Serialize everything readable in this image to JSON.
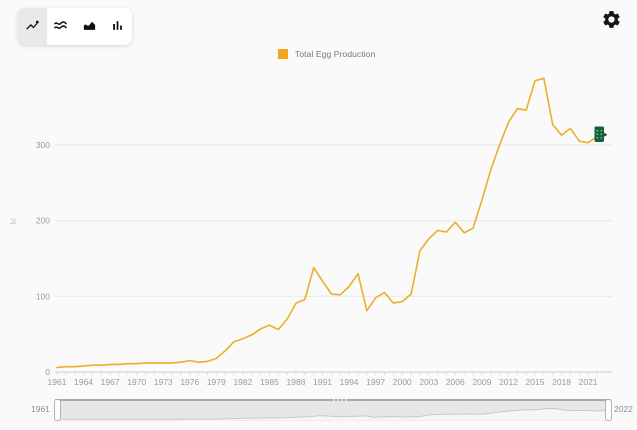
{
  "toolbar": {
    "buttons": [
      {
        "icon": "line-chart-icon",
        "selected": true
      },
      {
        "icon": "slope-chart-icon",
        "selected": false
      },
      {
        "icon": "stacked-area-chart-icon",
        "selected": false
      },
      {
        "icon": "bar-chart-icon",
        "selected": false
      }
    ]
  },
  "settings": {
    "icon": "gear-icon"
  },
  "legend": {
    "label": "Total Egg Production",
    "swatch_color": "#f0a71f"
  },
  "chart_data": {
    "type": "line",
    "title": "",
    "xlabel": "",
    "ylabel": "kt",
    "ylim": [
      0,
      400
    ],
    "yticks": [
      0,
      100,
      200,
      300
    ],
    "xticks": [
      1961,
      1964,
      1967,
      1970,
      1973,
      1976,
      1979,
      1982,
      1985,
      1988,
      1991,
      1994,
      1997,
      2000,
      2003,
      2006,
      2009,
      2012,
      2015,
      2018,
      2021
    ],
    "grid": true,
    "legend_position": "top",
    "x": [
      1961,
      1962,
      1963,
      1964,
      1965,
      1966,
      1967,
      1968,
      1969,
      1970,
      1971,
      1972,
      1973,
      1974,
      1975,
      1976,
      1977,
      1978,
      1979,
      1980,
      1981,
      1982,
      1983,
      1984,
      1985,
      1986,
      1987,
      1988,
      1989,
      1990,
      1991,
      1992,
      1993,
      1994,
      1995,
      1996,
      1997,
      1998,
      1999,
      2000,
      2001,
      2002,
      2003,
      2004,
      2005,
      2006,
      2007,
      2008,
      2009,
      2010,
      2011,
      2012,
      2013,
      2014,
      2015,
      2016,
      2017,
      2018,
      2019,
      2020,
      2021,
      2022
    ],
    "series": [
      {
        "name": "Total Egg Production",
        "color": "#e9b028",
        "values": [
          6,
          7,
          7,
          8,
          9,
          9,
          10,
          10,
          11,
          11,
          12,
          12,
          12,
          12,
          13,
          15,
          13,
          14,
          18,
          28,
          40,
          44,
          49,
          57,
          62,
          56,
          70,
          91,
          96,
          138,
          120,
          103,
          102,
          113,
          130,
          81,
          98,
          105,
          91,
          93,
          103,
          160,
          176,
          187,
          185,
          198,
          184,
          190,
          227,
          267,
          300,
          330,
          348,
          346,
          385,
          388,
          327,
          313,
          322,
          305,
          303,
          311
        ]
      }
    ],
    "end_marker_color": "#15603a"
  },
  "timeline": {
    "start_label": "1961",
    "end_label": "2022"
  }
}
